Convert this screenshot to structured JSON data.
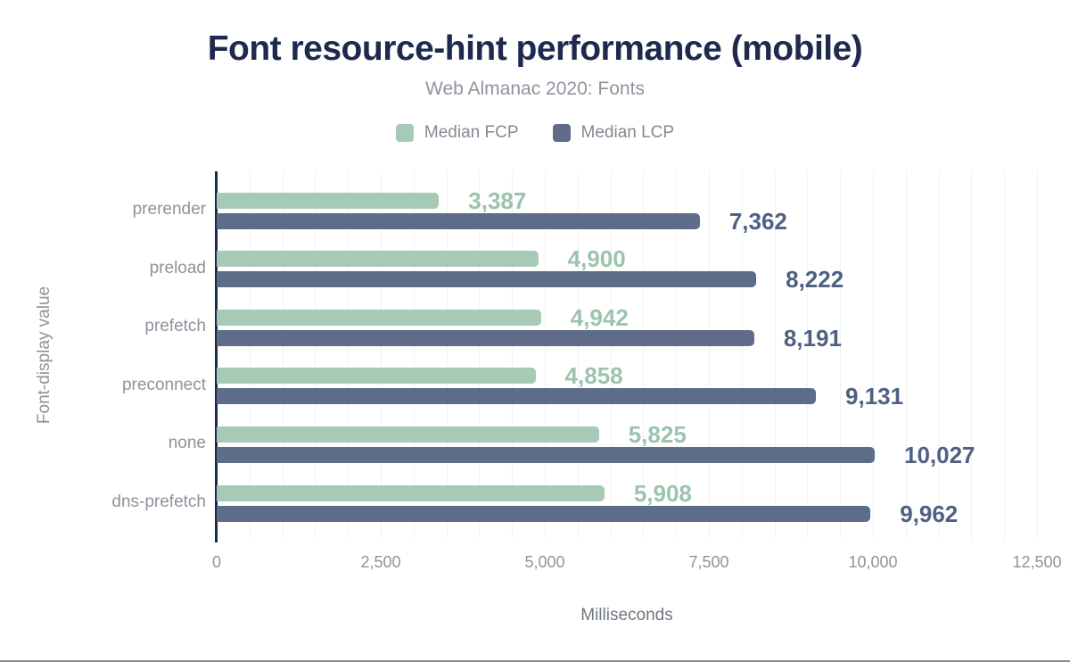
{
  "chart_data": {
    "type": "bar",
    "orientation": "horizontal",
    "title": "Font resource-hint performance (mobile)",
    "subtitle": "Web Almanac 2020: Fonts",
    "xlabel": "Milliseconds",
    "ylabel": "Font-display value",
    "categories": [
      "prerender",
      "preload",
      "prefetch",
      "preconnect",
      "none",
      "dns-prefetch"
    ],
    "series": [
      {
        "name": "Median FCP",
        "color": "#a6cab6",
        "label_color": "#9cc3ad",
        "values": [
          3387,
          4900,
          4942,
          4858,
          5825,
          5908
        ],
        "value_labels": [
          "3,387",
          "4,900",
          "4,942",
          "4,858",
          "5,825",
          "5,908"
        ]
      },
      {
        "name": "Median LCP",
        "color": "#5d6c89",
        "label_color": "#4f6183",
        "values": [
          7362,
          8222,
          8191,
          9131,
          10027,
          9962
        ],
        "value_labels": [
          "7,362",
          "8,222",
          "8,191",
          "9,131",
          "10,027",
          "9,962"
        ]
      }
    ],
    "xlim": [
      0,
      12500
    ],
    "xticks": [
      0,
      2500,
      5000,
      7500,
      10000,
      12500
    ],
    "xtick_labels": [
      "0",
      "2,500",
      "5,000",
      "7,500",
      "10,000",
      "12,500"
    ],
    "minor_grid_step_ms": 500,
    "grid": true,
    "legend_position": "top",
    "colors": {
      "title": "#1e2a4d",
      "subtitle": "#8e949d",
      "axis_line": "#1a2a4a",
      "gridline": "#eff1f4",
      "tick_text": "#8e949d",
      "category_text": "#8d939c"
    }
  }
}
